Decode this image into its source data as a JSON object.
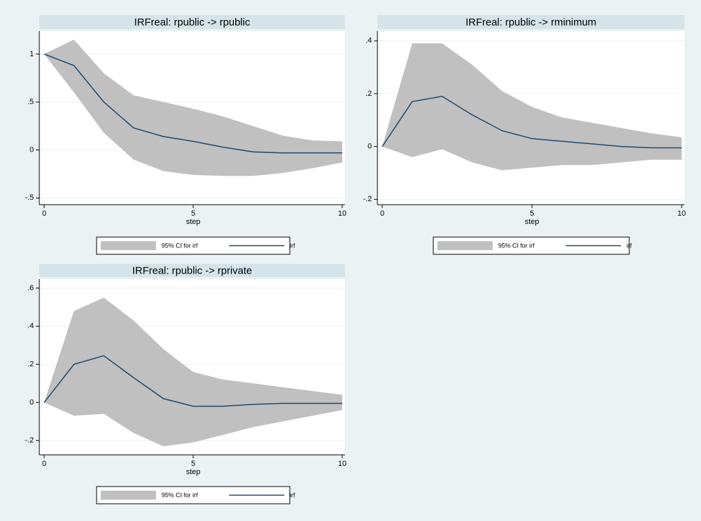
{
  "chart_data": [
    {
      "type": "line",
      "title": "IRFreal: rpublic -> rpublic",
      "xlabel": "step",
      "x": [
        0,
        1,
        2,
        3,
        4,
        5,
        6,
        7,
        8,
        9,
        10
      ],
      "xlim": [
        0,
        10
      ],
      "xticks": [
        0,
        5,
        10
      ],
      "ylim": [
        -0.57,
        1.24
      ],
      "yticks": [
        {
          "value": -0.5,
          "label": "-.5"
        },
        0,
        {
          "value": 0.5,
          "label": ".5"
        },
        1
      ],
      "grid": true,
      "series": [
        {
          "name": "95% CI for irf",
          "color": "#c0c0c0",
          "kind": "band",
          "lower": [
            1,
            0.6,
            0.18,
            -0.1,
            -0.22,
            -0.26,
            -0.27,
            -0.27,
            -0.24,
            -0.19,
            -0.13
          ],
          "upper": [
            1,
            1.15,
            0.8,
            0.57,
            0.5,
            0.43,
            0.35,
            0.25,
            0.15,
            0.1,
            0.09
          ]
        },
        {
          "name": "irf",
          "color": "#1a476f",
          "values": [
            1,
            0.88,
            0.5,
            0.23,
            0.14,
            0.09,
            0.03,
            -0.02,
            -0.03,
            -0.03,
            -0.03
          ]
        }
      ]
    },
    {
      "type": "line",
      "title": "IRFreal: rpublic -> rminimum",
      "xlabel": "step",
      "x": [
        0,
        1,
        2,
        3,
        4,
        5,
        6,
        7,
        8,
        9,
        10
      ],
      "xlim": [
        0,
        10
      ],
      "xticks": [
        0,
        5,
        10
      ],
      "ylim": [
        -0.22,
        0.437
      ],
      "yticks": [
        {
          "value": -0.2,
          "label": "-.2"
        },
        0,
        {
          "value": 0.2,
          "label": ".2"
        },
        {
          "value": 0.4,
          "label": ".4"
        }
      ],
      "grid": true,
      "series": [
        {
          "name": "95% CI for irf",
          "color": "#c0c0c0",
          "kind": "band",
          "lower": [
            0,
            -0.04,
            -0.01,
            -0.06,
            -0.09,
            -0.08,
            -0.07,
            -0.07,
            -0.06,
            -0.05,
            -0.05
          ],
          "upper": [
            0,
            0.39,
            0.39,
            0.31,
            0.21,
            0.15,
            0.11,
            0.09,
            0.07,
            0.05,
            0.035
          ]
        },
        {
          "name": "irf",
          "color": "#1a476f",
          "values": [
            0,
            0.17,
            0.19,
            0.12,
            0.06,
            0.03,
            0.02,
            0.01,
            0,
            -0.005,
            -0.005
          ]
        }
      ]
    },
    {
      "type": "line",
      "title": "IRFreal: rpublic -> rprivate",
      "xlabel": "step",
      "x": [
        0,
        1,
        2,
        3,
        4,
        5,
        6,
        7,
        8,
        9,
        10
      ],
      "xlim": [
        0,
        10
      ],
      "xticks": [
        0,
        5,
        10
      ],
      "ylim": [
        -0.275,
        0.647
      ],
      "yticks": [
        {
          "value": -0.2,
          "label": "-.2"
        },
        0,
        {
          "value": 0.2,
          "label": ".2"
        },
        {
          "value": 0.4,
          "label": ".4"
        },
        {
          "value": 0.6,
          "label": ".6"
        }
      ],
      "grid": true,
      "series": [
        {
          "name": "95% CI for irf",
          "color": "#c0c0c0",
          "kind": "band",
          "lower": [
            0,
            -0.07,
            -0.06,
            -0.16,
            -0.23,
            -0.21,
            -0.17,
            -0.13,
            -0.1,
            -0.07,
            -0.04
          ],
          "upper": [
            0,
            0.48,
            0.55,
            0.43,
            0.28,
            0.16,
            0.12,
            0.1,
            0.08,
            0.06,
            0.04
          ]
        },
        {
          "name": "irf",
          "color": "#1a476f",
          "values": [
            0,
            0.2,
            0.245,
            0.13,
            0.02,
            -0.02,
            -0.02,
            -0.01,
            -0.005,
            -0.005,
            -0.005
          ]
        }
      ]
    }
  ]
}
